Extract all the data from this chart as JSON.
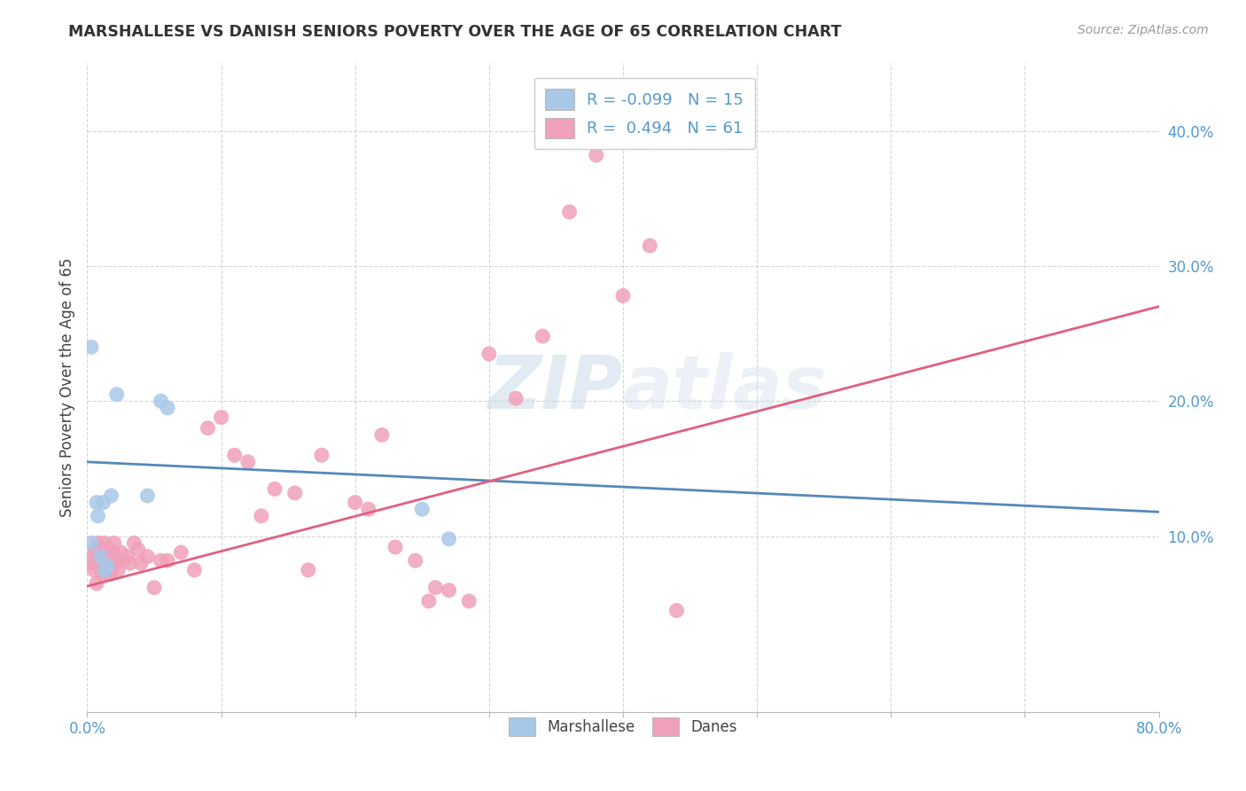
{
  "title": "MARSHALLESE VS DANISH SENIORS POVERTY OVER THE AGE OF 65 CORRELATION CHART",
  "source": "Source: ZipAtlas.com",
  "ylabel": "Seniors Poverty Over the Age of 65",
  "background_color": "#ffffff",
  "grid_color": "#cccccc",
  "watermark": "ZIPatlas",
  "R_marshallese": -0.099,
  "N_marshallese": 15,
  "R_danes": 0.494,
  "N_danes": 61,
  "marshallese_color": "#a8c8e8",
  "danes_color": "#f0a0b8",
  "marshallese_line_color": "#5588bb",
  "danes_line_color": "#e06080",
  "tick_color": "#5599cc",
  "xlim": [
    0.0,
    0.8
  ],
  "ylim": [
    -0.03,
    0.45
  ],
  "marshallese_line_y0": 0.155,
  "marshallese_line_y1": 0.118,
  "danes_line_y0": 0.063,
  "danes_line_y1": 0.27,
  "marshallese_x": [
    0.003,
    0.007,
    0.008,
    0.01,
    0.012,
    0.013,
    0.015,
    0.018,
    0.022,
    0.045,
    0.055,
    0.06,
    0.25,
    0.27,
    0.003
  ],
  "marshallese_y": [
    0.095,
    0.125,
    0.115,
    0.085,
    0.125,
    0.075,
    0.078,
    0.13,
    0.205,
    0.13,
    0.2,
    0.195,
    0.12,
    0.098,
    0.24
  ],
  "danes_x": [
    0.003,
    0.004,
    0.005,
    0.006,
    0.007,
    0.008,
    0.009,
    0.01,
    0.01,
    0.011,
    0.012,
    0.013,
    0.014,
    0.015,
    0.016,
    0.017,
    0.018,
    0.019,
    0.02,
    0.021,
    0.022,
    0.023,
    0.025,
    0.027,
    0.03,
    0.032,
    0.035,
    0.038,
    0.04,
    0.045,
    0.05,
    0.055,
    0.06,
    0.07,
    0.08,
    0.09,
    0.1,
    0.11,
    0.12,
    0.13,
    0.14,
    0.155,
    0.165,
    0.175,
    0.2,
    0.21,
    0.22,
    0.23,
    0.245,
    0.255,
    0.26,
    0.27,
    0.285,
    0.3,
    0.32,
    0.34,
    0.36,
    0.38,
    0.4,
    0.42,
    0.44
  ],
  "danes_y": [
    0.08,
    0.085,
    0.075,
    0.09,
    0.065,
    0.095,
    0.08,
    0.085,
    0.09,
    0.072,
    0.075,
    0.095,
    0.08,
    0.085,
    0.09,
    0.072,
    0.075,
    0.088,
    0.095,
    0.08,
    0.082,
    0.075,
    0.088,
    0.082,
    0.085,
    0.08,
    0.095,
    0.09,
    0.08,
    0.085,
    0.062,
    0.082,
    0.082,
    0.088,
    0.075,
    0.18,
    0.188,
    0.16,
    0.155,
    0.115,
    0.135,
    0.132,
    0.075,
    0.16,
    0.125,
    0.12,
    0.175,
    0.092,
    0.082,
    0.052,
    0.062,
    0.06,
    0.052,
    0.235,
    0.202,
    0.248,
    0.34,
    0.382,
    0.278,
    0.315,
    0.045
  ]
}
